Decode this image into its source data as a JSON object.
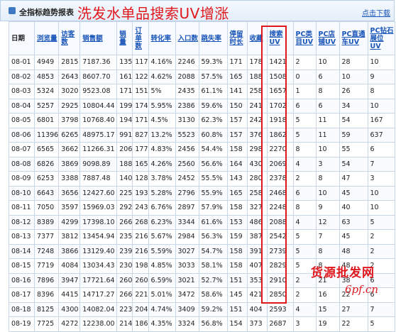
{
  "header": {
    "title": "全指标趋势报表",
    "overlay_caption": "洗发水单品搜索UV增涨",
    "download_label": "点击下载"
  },
  "table": {
    "columns": [
      "日期",
      "浏览量",
      "访客数",
      "销售额",
      "销量",
      "订单数",
      "转化率",
      "入口数",
      "跳失率",
      "停留时长",
      "收藏",
      "搜索UV",
      "PC类目UV",
      "PC店铺UV",
      "PC直通车UV",
      "PC钻石展位UV"
    ],
    "rows": [
      [
        "08-01",
        "4949",
        "2815",
        "7187.36",
        "135",
        "117",
        "4.16%",
        "2246",
        "59.3%",
        "171",
        "178",
        "1421",
        "2",
        "10",
        "28",
        "10"
      ],
      [
        "08-02",
        "4853",
        "2643",
        "8607.70",
        "161",
        "122",
        "4.62%",
        "2088",
        "57.5%",
        "165",
        "188",
        "1508",
        "0",
        "6",
        "10",
        "9"
      ],
      [
        "08-03",
        "5324",
        "3020",
        "9523.08",
        "171",
        "151",
        "5%",
        "2435",
        "61.1%",
        "141",
        "258",
        "1657",
        "1",
        "8",
        "26",
        "8"
      ],
      [
        "08-04",
        "5257",
        "2925",
        "10804.44",
        "199",
        "174",
        "5.95%",
        "2386",
        "59.6%",
        "150",
        "241",
        "1702",
        "6",
        "6",
        "34",
        "10"
      ],
      [
        "08-05",
        "6801",
        "3798",
        "10768.40",
        "194",
        "171",
        "4.5%",
        "3130",
        "62.3%",
        "157",
        "242",
        "1918",
        "5",
        "11",
        "54",
        "167"
      ],
      [
        "08-06",
        "11396",
        "6265",
        "48975.17",
        "991",
        "827",
        "13.2%",
        "5523",
        "60.8%",
        "157",
        "376",
        "1862",
        "5",
        "11",
        "59",
        "637"
      ],
      [
        "08-07",
        "6565",
        "3662",
        "11266.31",
        "206",
        "177",
        "4.83%",
        "2456",
        "54.4%",
        "158",
        "298",
        "2270",
        "8",
        "10",
        "55",
        "6"
      ],
      [
        "08-08",
        "6826",
        "3869",
        "9098.89",
        "188",
        "165",
        "4.26%",
        "2560",
        "56.6%",
        "164",
        "430",
        "2069",
        "4",
        "3",
        "54",
        "7"
      ],
      [
        "08-09",
        "6253",
        "3388",
        "7887.48",
        "140",
        "128",
        "3.78%",
        "2452",
        "55.5%",
        "143",
        "280",
        "2378",
        "2",
        "8",
        "47",
        "3"
      ],
      [
        "08-10",
        "6643",
        "3656",
        "12427.60",
        "225",
        "193",
        "5.28%",
        "2796",
        "55.9%",
        "165",
        "258",
        "2468",
        "6",
        "10",
        "45",
        "10"
      ],
      [
        "08-11",
        "7050",
        "3597",
        "15969.03",
        "292",
        "243",
        "6.76%",
        "2897",
        "57.9%",
        "158",
        "327",
        "2248",
        "8",
        "9",
        "40",
        "10"
      ],
      [
        "08-12",
        "8389",
        "4299",
        "17398.10",
        "266",
        "268",
        "6.23%",
        "3344",
        "61.6%",
        "153",
        "486",
        "2088",
        "4",
        "12",
        "63",
        "5"
      ],
      [
        "08-13",
        "7377",
        "3812",
        "13454.94",
        "235",
        "216",
        "5.67%",
        "2984",
        "56.3%",
        "159",
        "387",
        "2542",
        "5",
        "7",
        "45",
        "2"
      ],
      [
        "08-14",
        "7248",
        "3866",
        "13129.40",
        "239",
        "216",
        "5.59%",
        "3027",
        "54.7%",
        "158",
        "391",
        "2739",
        "5",
        "8",
        "48",
        "2"
      ],
      [
        "08-15",
        "7719",
        "4084",
        "13034.43",
        "230",
        "198",
        "4.85%",
        "3033",
        "58.1%",
        "158",
        "407",
        "2829",
        "5",
        "8",
        "48",
        "2"
      ],
      [
        "08-16",
        "7896",
        "3947",
        "17721.64",
        "260",
        "260",
        "6.59%",
        "3021",
        "52.7%",
        "151",
        "353",
        "2910",
        "2",
        "21",
        "38",
        "6"
      ],
      [
        "08-17",
        "8396",
        "4415",
        "14717.27",
        "266",
        "221",
        "5.01%",
        "3472",
        "58.6%",
        "145",
        "421",
        "2850",
        "2",
        "16",
        "22",
        "6"
      ],
      [
        "08-18",
        "8125",
        "4300",
        "14082.04",
        "223",
        "204",
        "4.74%",
        "3409",
        "59.2%",
        "151",
        "404",
        "2593",
        "4",
        "15",
        "27",
        "7"
      ],
      [
        "08-19",
        "7725",
        "4272",
        "12238.00",
        "214",
        "186",
        "4.35%",
        "3324",
        "56.8%",
        "154",
        "373",
        "2687",
        "3",
        "19",
        "22",
        "5"
      ]
    ]
  },
  "watermark": {
    "line1": "货源批发网",
    "line2": "6pf.cn"
  },
  "colors": {
    "accent_red": "#e0181e",
    "link_blue": "#1a55b8",
    "border": "#c9d6e6"
  }
}
